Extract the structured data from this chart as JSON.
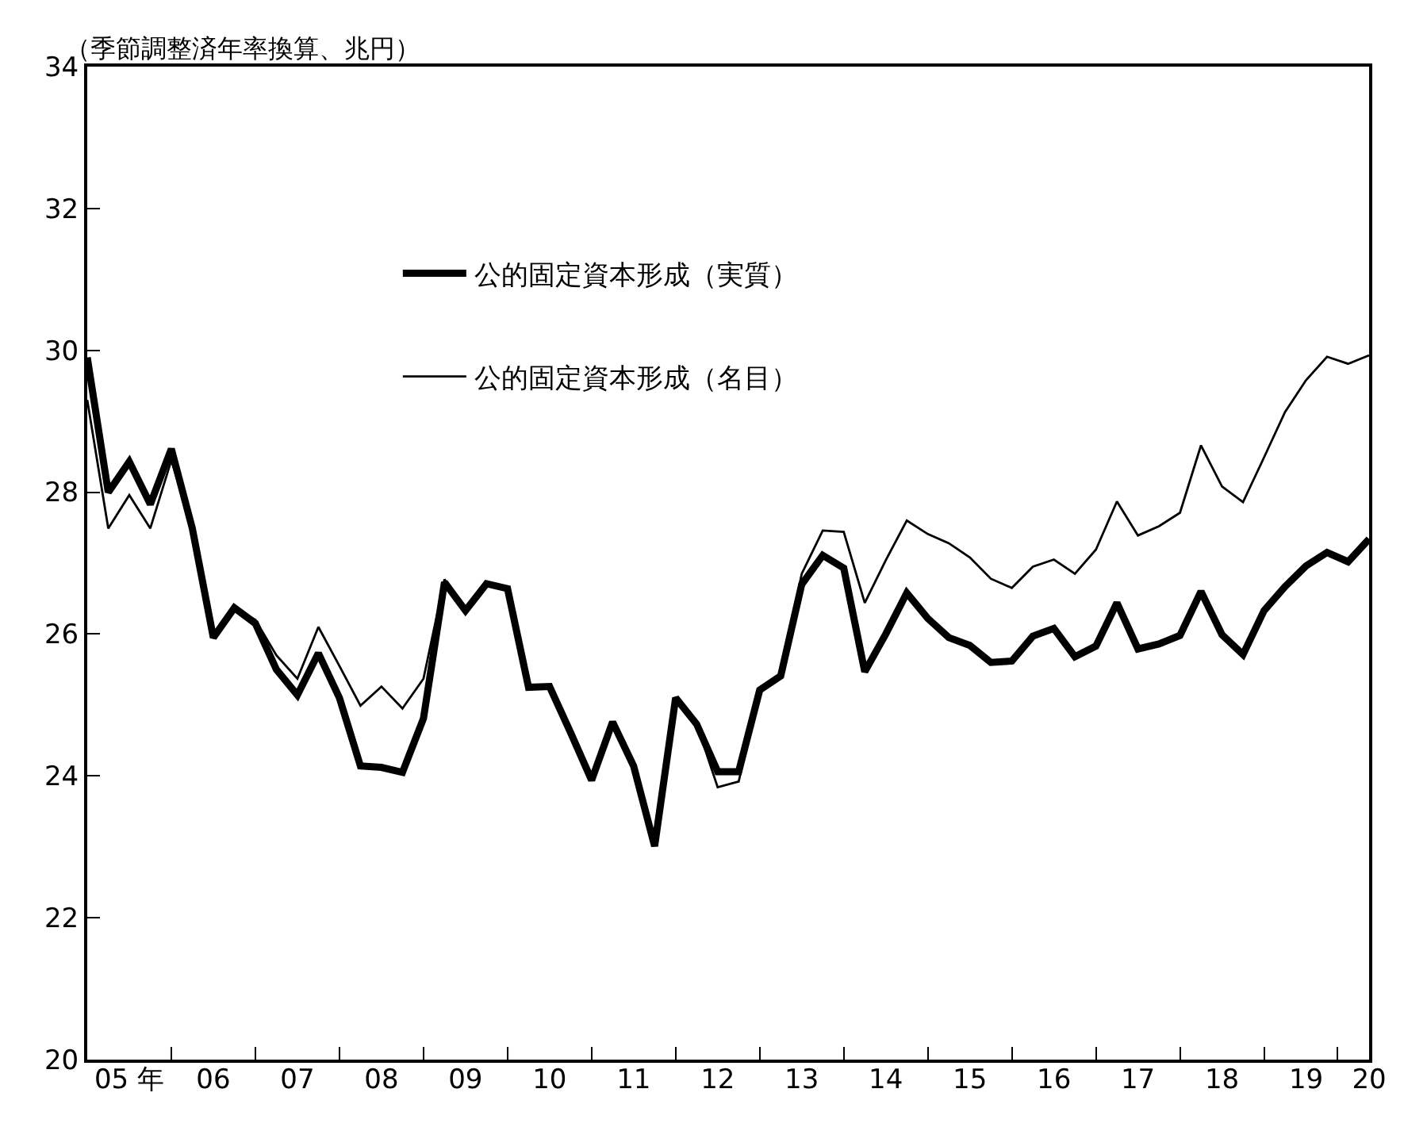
{
  "chart_data": {
    "type": "line",
    "ylabel": "（季節調整済年率換算、兆円）",
    "categories": [
      null,
      null,
      "05 年",
      null,
      null,
      null,
      "06",
      null,
      null,
      null,
      "07",
      null,
      null,
      null,
      "08",
      null,
      null,
      null,
      "09",
      null,
      null,
      null,
      "10",
      null,
      null,
      null,
      "11",
      null,
      null,
      null,
      "12",
      null,
      null,
      null,
      "13",
      null,
      null,
      null,
      "14",
      null,
      null,
      null,
      "15",
      null,
      null,
      null,
      "16",
      null,
      null,
      null,
      "17",
      null,
      null,
      null,
      "18",
      null,
      null,
      null,
      "19",
      null,
      null,
      "20"
    ],
    "series": [
      {
        "name": "公的固定資本形成（実質）",
        "color": "#000000",
        "values": [
          29.9,
          28.0,
          28.43,
          27.83,
          28.61,
          27.49,
          25.95,
          26.37,
          26.15,
          25.5,
          25.14,
          25.73,
          25.1,
          24.14,
          24.12,
          24.05,
          24.81,
          26.73,
          26.33,
          26.71,
          26.64,
          25.25,
          25.26,
          24.61,
          23.94,
          24.76,
          24.14,
          23.01,
          25.1,
          24.73,
          24.06,
          24.06,
          25.21,
          25.41,
          26.7,
          27.11,
          26.93,
          25.47,
          26.0,
          26.58,
          26.22,
          25.95,
          25.84,
          25.6,
          25.62,
          25.97,
          26.08,
          25.68,
          25.83,
          26.44,
          25.79,
          25.86,
          25.98,
          26.6,
          25.99,
          25.71,
          26.33,
          26.67,
          26.96,
          27.15,
          27.02,
          27.34
        ]
      },
      {
        "name": "公的固定資本形成（名目）",
        "color": "#000000",
        "values": [
          29.3,
          27.49,
          27.96,
          27.49,
          28.45,
          27.49,
          25.95,
          26.37,
          26.2,
          25.7,
          25.37,
          26.1,
          25.55,
          24.99,
          25.26,
          24.95,
          25.37,
          26.77,
          26.33,
          26.71,
          26.64,
          25.25,
          25.26,
          24.61,
          23.94,
          24.76,
          24.14,
          23.01,
          25.1,
          24.73,
          23.84,
          23.92,
          25.21,
          25.41,
          26.85,
          27.46,
          27.44,
          26.44,
          27.04,
          27.6,
          27.41,
          27.28,
          27.08,
          26.78,
          26.65,
          26.95,
          27.05,
          26.85,
          27.19,
          27.87,
          27.39,
          27.52,
          27.71,
          28.66,
          28.08,
          27.86,
          28.49,
          29.13,
          29.58,
          29.91,
          29.81,
          29.93
        ]
      }
    ],
    "ylim": [
      20,
      34
    ],
    "yticks": [
      20,
      22,
      24,
      26,
      28,
      30,
      32,
      34
    ],
    "legend": "top left",
    "marker": "none",
    "line_style": "solid"
  }
}
